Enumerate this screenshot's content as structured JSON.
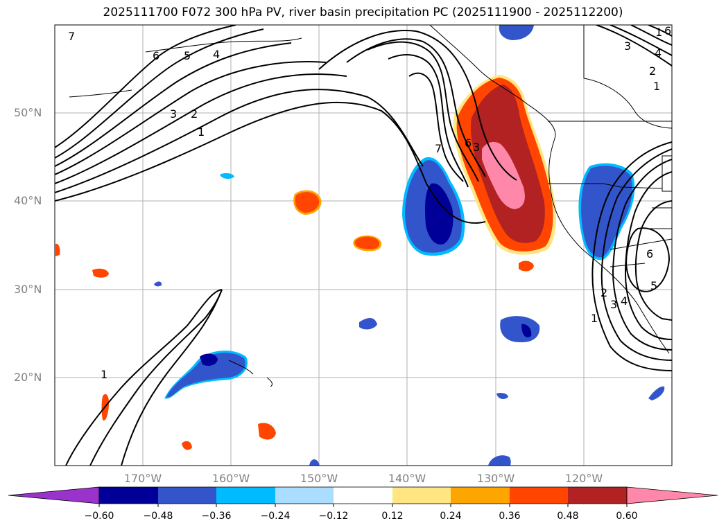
{
  "title": "2025111700 F072 300 hPa PV, river basin precipitation PC (2025111900 - 2025112200)",
  "axes": {
    "lat_labels": [
      "50°N",
      "40°N",
      "30°N",
      "20°N"
    ],
    "lon_labels": [
      "170°W",
      "160°W",
      "150°W",
      "140°W",
      "130°W",
      "120°W"
    ]
  },
  "contour_labels": [
    "7",
    "6",
    "5",
    "4",
    "3",
    "2",
    "1",
    "7",
    "6",
    "3",
    "6",
    "5",
    "4",
    "3",
    "2",
    "1",
    "1",
    "1",
    "3",
    "4",
    "2",
    "1",
    "6"
  ],
  "colorbar": {
    "ticks": [
      "−0.60",
      "−0.48",
      "−0.36",
      "−0.24",
      "−0.12",
      "0.12",
      "0.24",
      "0.36",
      "0.48",
      "0.60"
    ],
    "colors": [
      "#9933cc",
      "#000099",
      "#3355cc",
      "#00bbff",
      "#aaddff",
      "#ffffff",
      "#ffe680",
      "#ffa500",
      "#ff4500",
      "#b22222",
      "#ff88aa"
    ]
  },
  "colors": {
    "neg_strong": "#000099",
    "neg_mid": "#3355cc",
    "neg_light": "#00bbff",
    "pos_light": "#ffe680",
    "pos_orange": "#ffa500",
    "pos_red": "#ff4500",
    "pos_dark": "#b22222",
    "pos_pink": "#ff88aa"
  }
}
